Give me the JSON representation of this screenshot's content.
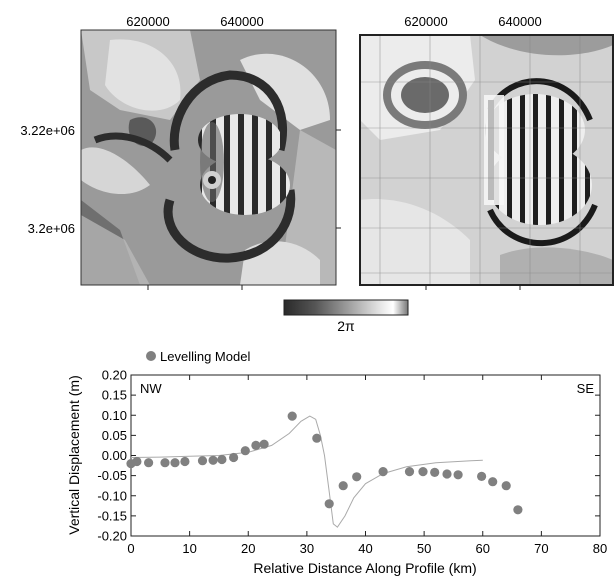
{
  "maps": {
    "x_ticks": [
      "620000",
      "640000"
    ],
    "y_ticks": [
      "3.22e+06",
      "3.2e+06"
    ],
    "left_panel": "interferogram (observed)",
    "right_panel": "interferogram (model)",
    "colorbar_label": "2π"
  },
  "chart_data": {
    "type": "scatter",
    "xlabel": "Relative Distance Along Profile (km)",
    "ylabel": "Vertical Displacement (m)",
    "xlim": [
      0,
      80
    ],
    "ylim": [
      -0.2,
      0.2
    ],
    "x_ticks": [
      0,
      10,
      20,
      30,
      40,
      50,
      60,
      70,
      80
    ],
    "y_ticks": [
      0.2,
      0.15,
      0.1,
      0.05,
      0.0,
      -0.05,
      -0.1,
      -0.15,
      -0.2
    ],
    "x_tick_labels": [
      "0",
      "10",
      "20",
      "30",
      "40",
      "50",
      "60",
      "70",
      "80"
    ],
    "y_tick_labels": [
      "0.20",
      "0.15",
      "0.10",
      "0.05",
      "0.00",
      "-0.05",
      "-0.10",
      "-0.15",
      "-0.20"
    ],
    "legend": {
      "placement": "top-left",
      "text": "Levelling Model"
    },
    "annotations": {
      "left": "NW",
      "right": "SE"
    },
    "series": [
      {
        "name": "Levelling",
        "kind": "points",
        "color": "#808080",
        "points": [
          [
            0.0,
            -0.02
          ],
          [
            1.0,
            -0.015
          ],
          [
            3.0,
            -0.018
          ],
          [
            5.8,
            -0.018
          ],
          [
            7.5,
            -0.018
          ],
          [
            9.2,
            -0.015
          ],
          [
            12.2,
            -0.013
          ],
          [
            14.0,
            -0.012
          ],
          [
            15.5,
            -0.01
          ],
          [
            17.5,
            -0.005
          ],
          [
            19.5,
            0.012
          ],
          [
            21.3,
            0.025
          ],
          [
            22.7,
            0.028
          ],
          [
            27.5,
            0.098
          ],
          [
            31.7,
            0.043
          ],
          [
            33.8,
            -0.12
          ],
          [
            36.2,
            -0.075
          ],
          [
            38.5,
            -0.053
          ],
          [
            43.0,
            -0.04
          ],
          [
            47.5,
            -0.04
          ],
          [
            49.8,
            -0.04
          ],
          [
            51.8,
            -0.042
          ],
          [
            53.9,
            -0.046
          ],
          [
            55.8,
            -0.048
          ],
          [
            59.8,
            -0.052
          ],
          [
            61.7,
            -0.065
          ],
          [
            64.0,
            -0.075
          ],
          [
            66.0,
            -0.135
          ]
        ]
      },
      {
        "name": "Model",
        "kind": "line",
        "color": "#aaaaaa",
        "points": [
          [
            0,
            -0.005
          ],
          [
            5,
            -0.004
          ],
          [
            10,
            -0.002
          ],
          [
            15,
            0.0
          ],
          [
            20,
            0.008
          ],
          [
            24,
            0.025
          ],
          [
            27,
            0.055
          ],
          [
            29,
            0.085
          ],
          [
            30.5,
            0.098
          ],
          [
            31.5,
            0.09
          ],
          [
            32.3,
            0.05
          ],
          [
            33,
            0.0
          ],
          [
            33.8,
            -0.09
          ],
          [
            34.5,
            -0.17
          ],
          [
            35.2,
            -0.178
          ],
          [
            36.5,
            -0.15
          ],
          [
            38,
            -0.105
          ],
          [
            40,
            -0.07
          ],
          [
            43,
            -0.045
          ],
          [
            47,
            -0.028
          ],
          [
            52,
            -0.018
          ],
          [
            58,
            -0.013
          ],
          [
            60,
            -0.012
          ]
        ]
      }
    ]
  }
}
